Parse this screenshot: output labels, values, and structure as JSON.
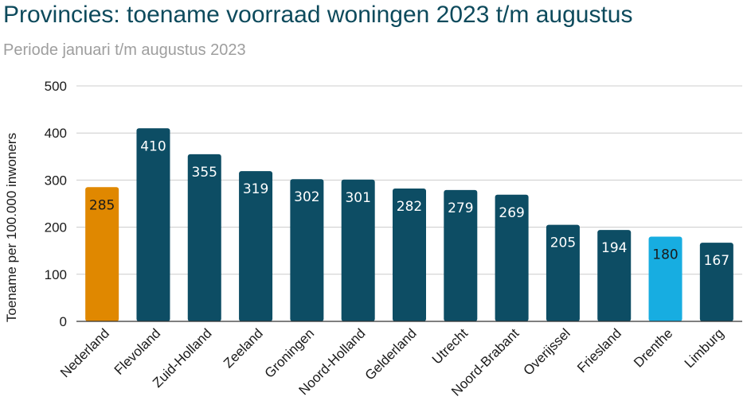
{
  "chart_data": {
    "type": "bar",
    "title": "Provincies: toename voorraad woningen 2023 t/m augustus",
    "subtitle": "Periode januari t/m augustus 2023",
    "xlabel": "",
    "ylabel": "Toename per 100.000 inwoners",
    "ylim": [
      0,
      500
    ],
    "yticks": [
      0,
      100,
      200,
      300,
      400,
      500
    ],
    "grid": true,
    "categories": [
      "Nederland",
      "Flevoland",
      "Zuid-Holland",
      "Zeeland",
      "Groningen",
      "Noord-Holland",
      "Gelderland",
      "Utrecht",
      "Noord-Brabant",
      "Overijssel",
      "Friesland",
      "Drenthe",
      "Limburg"
    ],
    "values": [
      285,
      410,
      355,
      319,
      302,
      301,
      282,
      279,
      269,
      205,
      194,
      180,
      167
    ],
    "bar_colors": [
      "#e08800",
      "#0d4d64",
      "#0d4d64",
      "#0d4d64",
      "#0d4d64",
      "#0d4d64",
      "#0d4d64",
      "#0d4d64",
      "#0d4d64",
      "#0d4d64",
      "#0d4d64",
      "#17ade1",
      "#0d4d64"
    ],
    "label_colors": [
      "#1a1a1a",
      "#ffffff",
      "#ffffff",
      "#ffffff",
      "#ffffff",
      "#ffffff",
      "#ffffff",
      "#ffffff",
      "#ffffff",
      "#ffffff",
      "#ffffff",
      "#1a1a1a",
      "#ffffff"
    ]
  }
}
